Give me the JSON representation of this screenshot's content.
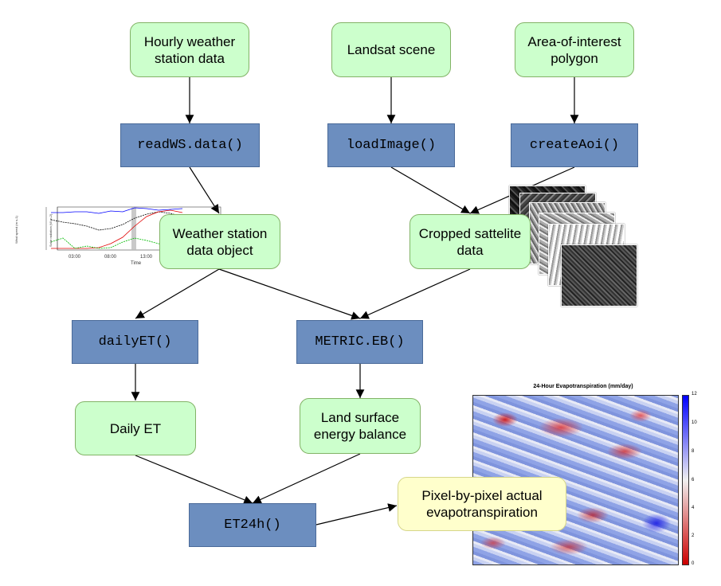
{
  "nodes": {
    "hourly_weather": "Hourly weather station data",
    "landsat_scene": "Landsat scene",
    "aoi_polygon": "Area-of-interest polygon",
    "readws": "readWS.data()",
    "loadimage": "loadImage()",
    "createaoi": "createAoi()",
    "ws_object": "Weather station data object",
    "cropped_sat": "Cropped sattelite data",
    "dailyet_fn": "dailyET()",
    "metric_fn": "METRIC.EB()",
    "daily_et": "Daily ET",
    "land_surface": "Land surface energy balance",
    "et24h_fn": "ET24h()",
    "pixel_et": "Pixel-by-pixel actual evapotranspiration"
  },
  "et_map": {
    "title": "24-Hour Evapotranspiration (mm/day)",
    "colorbar_ticks": [
      "12",
      "10",
      "8",
      "6",
      "4",
      "2",
      "0"
    ]
  },
  "weather_thumbnail": {
    "x_ticks": [
      "03:00",
      "08:00",
      "13:00"
    ],
    "xlabel": "Time",
    "ylabel_left": "Wind speed (m s-1)",
    "ylabel_right": "Solar radiation (W m-2)"
  },
  "colors": {
    "data_fill": "#ccffcc",
    "function_fill": "#6c8ebf",
    "output_fill": "#ffffcc",
    "map_low": "#cc0000",
    "map_mid": "#f0f0f0",
    "map_high": "#0000ff"
  }
}
